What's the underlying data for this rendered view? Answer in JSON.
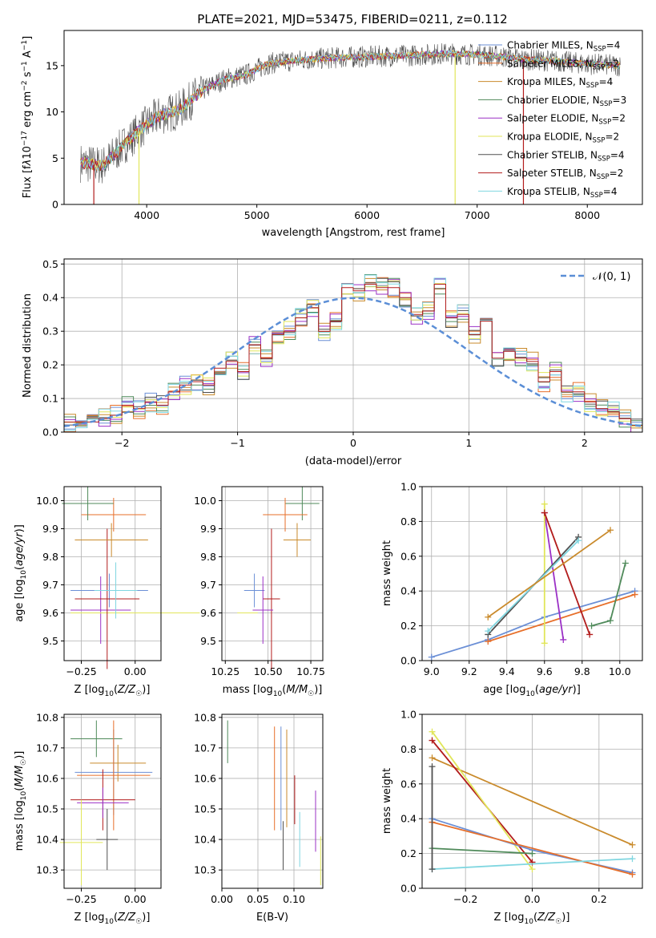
{
  "figure_title": "PLATE=2021, MJD=53475, FIBERID=0211, z=0.112",
  "models": [
    {
      "name": "Chabrier MILES",
      "nssp": "4",
      "color": "#6b8fd6"
    },
    {
      "name": "Salpeter MILES",
      "nssp": "2",
      "color": "#e76f2a"
    },
    {
      "name": "Kroupa MILES",
      "nssp": "4",
      "color": "#c98a2b"
    },
    {
      "name": "Chabrier ELODIE",
      "nssp": "3",
      "color": "#4f8a5a"
    },
    {
      "name": "Salpeter ELODIE",
      "nssp": "2",
      "color": "#9b30c6"
    },
    {
      "name": "Kroupa ELODIE",
      "nssp": "2",
      "color": "#e1e65a"
    },
    {
      "name": "Chabrier STELIB",
      "nssp": "4",
      "color": "#505050"
    },
    {
      "name": "Salpeter STELIB",
      "nssp": "2",
      "color": "#b21c1c"
    },
    {
      "name": "Kroupa STELIB",
      "nssp": "4",
      "color": "#7fd6e0"
    }
  ],
  "panels": {
    "spectrum": {
      "xlabel": "wavelength [Angstrom, rest frame]",
      "ylabel": "Flux [f_λ10⁻¹⁷ erg cm⁻² s⁻¹ A⁻¹]",
      "xlim": [
        3250,
        8500
      ],
      "ylim": [
        0,
        18.8
      ],
      "xticks": [
        "4000",
        "5000",
        "6000",
        "7000",
        "8000"
      ],
      "yticks": [
        "0",
        "5",
        "10",
        "15"
      ]
    },
    "residuals": {
      "xlabel": "(data-model)/error",
      "ylabel": "Normed distribution",
      "xlim": [
        -2.5,
        2.5
      ],
      "ylim": [
        0,
        0.515
      ],
      "xticks": [
        "−2",
        "−1",
        "0",
        "1",
        "2"
      ],
      "yticks": [
        "0.0",
        "0.1",
        "0.2",
        "0.3",
        "0.4",
        "0.5"
      ],
      "legend": "𝒩(0, 1)"
    },
    "age_vs_Z": {
      "xlabel": "Z [log₁₀(Z/Z☉)]",
      "ylabel": "age [log₁₀(age/yr)]",
      "xticks": [
        "−0.25",
        "0.00"
      ],
      "yticks": [
        "9.5",
        "9.6",
        "9.7",
        "9.8",
        "9.9",
        "10.0"
      ]
    },
    "age_vs_mass": {
      "xlabel": "mass [log₁₀(M/M☉)]",
      "xticks": [
        "10.25",
        "10.50",
        "10.75"
      ],
      "yticks": [
        "9.5",
        "9.6",
        "9.7",
        "9.8",
        "9.9",
        "10.0"
      ]
    },
    "weight_vs_age": {
      "xlabel": "age [log₁₀(age/yr)]",
      "ylabel": "mass weight",
      "xticks": [
        "9.0",
        "9.2",
        "9.4",
        "9.6",
        "9.8",
        "10.0"
      ],
      "yticks": [
        "0.0",
        "0.2",
        "0.4",
        "0.6",
        "0.8",
        "1.0"
      ]
    },
    "mass_vs_Z": {
      "xlabel": "Z [log₁₀(Z/Z☉)]",
      "ylabel": "mass [log₁₀(M/M☉)]",
      "xticks": [
        "−0.25",
        "0.00"
      ],
      "yticks": [
        "10.3",
        "10.4",
        "10.5",
        "10.6",
        "10.7",
        "10.8"
      ]
    },
    "mass_vs_ebv": {
      "xlabel": "E(B-V)",
      "xticks": [
        "0.00",
        "0.05",
        "0.10"
      ],
      "yticks": [
        "10.3",
        "10.4",
        "10.5",
        "10.6",
        "10.7",
        "10.8"
      ]
    },
    "weight_vs_Z": {
      "xlabel": "Z [log₁₀(Z/Z☉)]",
      "ylabel": "mass weight",
      "xticks": [
        "−0.2",
        "0.0",
        "0.2"
      ],
      "yticks": [
        "0.0",
        "0.2",
        "0.4",
        "0.6",
        "0.8",
        "1.0"
      ]
    }
  },
  "chart_data": [
    {
      "type": "line",
      "title": "PLATE=2021, MJD=53475, FIBERID=0211, z=0.112",
      "xlabel": "wavelength [Angstrom, rest frame]",
      "ylabel": "Flux [f_λ10⁻¹⁷ erg cm⁻² s⁻¹ A⁻¹]",
      "xlim": [
        3250,
        8500
      ],
      "ylim": [
        0,
        18.8
      ],
      "continuum_x": [
        3400,
        3600,
        3800,
        3950,
        4100,
        4300,
        4500,
        4700,
        4900,
        5100,
        5300,
        5500,
        5800,
        6100,
        6400,
        6700,
        7000,
        7200,
        7400,
        7700,
        8000,
        8300
      ],
      "continuum_y": [
        4.5,
        4.2,
        6.5,
        8.2,
        9.5,
        10.2,
        12.3,
        13.5,
        14.0,
        15.2,
        15.5,
        15.7,
        15.9,
        16.0,
        16.1,
        16.3,
        16.2,
        16.0,
        15.7,
        15.5,
        15.2,
        15.0
      ],
      "legend": [
        "Chabrier MILES, N_SSP=4",
        "Salpeter MILES, N_SSP=2",
        "Kroupa MILES, N_SSP=4",
        "Chabrier ELODIE, N_SSP=3",
        "Salpeter ELODIE, N_SSP=2",
        "Kroupa ELODIE, N_SSP=2",
        "Chabrier STELIB, N_SSP=4",
        "Salpeter STELIB, N_SSP=2",
        "Kroupa STELIB, N_SSP=4"
      ]
    },
    {
      "type": "line",
      "xlabel": "(data-model)/error",
      "ylabel": "Normed distribution",
      "xlim": [
        -2.5,
        2.5
      ],
      "ylim": [
        0,
        0.515
      ],
      "bin_edges_start": -2.6,
      "bin_width": 0.1,
      "histogram": {
        "model": "Salpeter STELIB",
        "values": [
          0.02,
          0.03,
          0.03,
          0.03,
          0.04,
          0.05,
          0.08,
          0.07,
          0.09,
          0.08,
          0.12,
          0.14,
          0.15,
          0.14,
          0.19,
          0.21,
          0.18,
          0.26,
          0.22,
          0.29,
          0.3,
          0.34,
          0.37,
          0.3,
          0.33,
          0.43,
          0.42,
          0.44,
          0.43,
          0.43,
          0.4,
          0.35,
          0.36,
          0.44,
          0.34,
          0.35,
          0.29,
          0.33,
          0.22,
          0.24,
          0.22,
          0.21,
          0.15,
          0.18,
          0.12,
          0.12,
          0.09,
          0.07,
          0.06,
          0.04,
          0.02,
          0.02
        ]
      },
      "normal_curve": {
        "name": "𝒩(0, 1)",
        "mean": 0,
        "sigma": 1
      }
    },
    {
      "type": "scatter",
      "xlabel": "Z [log₁₀(Z/Z☉)]",
      "ylabel": "age [log₁₀(age/yr)]",
      "xlim": [
        -0.33,
        0.12
      ],
      "ylim": [
        9.43,
        10.05
      ],
      "points": [
        {
          "model": "Chabrier MILES",
          "x": -0.12,
          "xerr": 0.18,
          "y": 9.68,
          "yerr": 0.06
        },
        {
          "model": "Salpeter MILES",
          "x": -0.1,
          "xerr": 0.15,
          "y": 9.95,
          "yerr": 0.06
        },
        {
          "model": "Chabrier ELODIE",
          "x": -0.22,
          "xerr": 0.12,
          "y": 9.99,
          "yerr": 0.06
        },
        {
          "model": "Salpeter ELODIE",
          "x": -0.16,
          "xerr": 0.14,
          "y": 9.61,
          "yerr": 0.12
        },
        {
          "model": "Kroupa ELODIE",
          "x": 0.0,
          "xerr": 0.3,
          "y": 9.6,
          "yerr": 0.0
        },
        {
          "model": "Salpeter STELIB",
          "x": -0.13,
          "xerr": 0.15,
          "y": 9.65,
          "yerr": 0.25
        },
        {
          "model": "Kroupa STELIB",
          "x": -0.09,
          "xerr": 0.1,
          "y": 9.68,
          "yerr": 0.1
        },
        {
          "model": "Kroupa MILES",
          "x": -0.11,
          "xerr": 0.17,
          "y": 9.86,
          "yerr": 0.06
        }
      ]
    },
    {
      "type": "scatter",
      "xlabel": "mass [log₁₀(M/M☉)]",
      "xlim": [
        10.23,
        10.82
      ],
      "ylim": [
        9.43,
        10.05
      ],
      "points": [
        {
          "model": "Chabrier ELODIE",
          "x": 10.7,
          "xerr": 0.1,
          "y": 9.99,
          "yerr": 0.06
        },
        {
          "model": "Salpeter MILES",
          "x": 10.6,
          "xerr": 0.13,
          "y": 9.95,
          "yerr": 0.06
        },
        {
          "model": "Kroupa MILES",
          "x": 10.67,
          "xerr": 0.08,
          "y": 9.86,
          "yerr": 0.06
        },
        {
          "model": "Chabrier MILES",
          "x": 10.42,
          "xerr": 0.06,
          "y": 9.68,
          "yerr": 0.06
        },
        {
          "model": "Salpeter STELIB",
          "x": 10.52,
          "xerr": 0.05,
          "y": 9.65,
          "yerr": 0.25
        },
        {
          "model": "Salpeter ELODIE",
          "x": 10.47,
          "xerr": 0.06,
          "y": 9.61,
          "yerr": 0.12
        },
        {
          "model": "Kroupa ELODIE",
          "x": 10.38,
          "xerr": 0.06,
          "y": 9.6,
          "yerr": 0.0
        }
      ]
    },
    {
      "type": "line",
      "xlabel": "age [log₁₀(age/yr)]",
      "ylabel": "mass weight",
      "xlim": [
        8.95,
        10.12
      ],
      "ylim": [
        0,
        1.0
      ],
      "series": [
        {
          "name": "Chabrier MILES",
          "x": [
            9.0,
            9.3,
            9.6,
            10.08
          ],
          "y": [
            0.02,
            0.12,
            0.25,
            0.4
          ]
        },
        {
          "name": "Salpeter MILES",
          "x": [
            9.3,
            10.08
          ],
          "y": [
            0.11,
            0.38
          ]
        },
        {
          "name": "Chabrier ELODIE",
          "x": [
            9.85,
            9.95,
            10.03
          ],
          "y": [
            0.2,
            0.23,
            0.56
          ]
        },
        {
          "name": "Salpeter ELODIE",
          "x": [
            9.6,
            9.7
          ],
          "y": [
            0.85,
            0.12
          ]
        },
        {
          "name": "Kroupa ELODIE",
          "x": [
            9.6,
            9.6
          ],
          "y": [
            0.9,
            0.1
          ]
        },
        {
          "name": "Chabrier STELIB",
          "x": [
            9.3,
            9.78
          ],
          "y": [
            0.15,
            0.71
          ]
        },
        {
          "name": "Salpeter STELIB",
          "x": [
            9.6,
            9.84
          ],
          "y": [
            0.85,
            0.15
          ]
        },
        {
          "name": "Kroupa STELIB",
          "x": [
            9.3,
            9.78
          ],
          "y": [
            0.17,
            0.69
          ]
        },
        {
          "name": "Kroupa MILES",
          "x": [
            9.3,
            9.95
          ],
          "y": [
            0.25,
            0.75
          ]
        }
      ]
    },
    {
      "type": "scatter",
      "xlabel": "Z [log₁₀(Z/Z☉)]",
      "ylabel": "mass [log₁₀(M/M☉)]",
      "xlim": [
        -0.33,
        0.12
      ],
      "ylim": [
        10.24,
        10.81
      ],
      "points": [
        {
          "model": "Chabrier ELODIE",
          "x": -0.18,
          "xerr": 0.12,
          "y": 10.73,
          "yerr": 0.06
        },
        {
          "model": "Kroupa MILES",
          "x": -0.08,
          "xerr": 0.13,
          "y": 10.65,
          "yerr": 0.06
        },
        {
          "model": "Chabrier MILES",
          "x": -0.1,
          "xerr": 0.18,
          "y": 10.62,
          "yerr": 0.14
        },
        {
          "model": "Salpeter MILES",
          "x": -0.1,
          "xerr": 0.17,
          "y": 10.61,
          "yerr": 0.18
        },
        {
          "model": "Salpeter STELIB",
          "x": -0.15,
          "xerr": 0.15,
          "y": 10.53,
          "yerr": 0.1
        },
        {
          "model": "Salpeter ELODIE",
          "x": -0.15,
          "xerr": 0.12,
          "y": 10.52,
          "yerr": 0.05
        },
        {
          "model": "Chabrier STELIB",
          "x": -0.13,
          "xerr": 0.05,
          "y": 10.4,
          "yerr": 0.1
        },
        {
          "model": "Kroupa ELODIE",
          "x": -0.25,
          "xerr": 0.1,
          "y": 10.39,
          "yerr": 0.14
        }
      ]
    },
    {
      "type": "scatter",
      "xlabel": "E(B-V)",
      "xlim": [
        0.0,
        0.14
      ],
      "ylim": [
        10.24,
        10.81
      ],
      "points": [
        {
          "model": "Chabrier ELODIE",
          "x": 0.008,
          "y": 10.72,
          "yerr": 0.07
        },
        {
          "model": "Salpeter MILES",
          "x": 0.073,
          "y": 10.6,
          "yerr": 0.17
        },
        {
          "model": "Chabrier MILES",
          "x": 0.082,
          "y": 10.6,
          "yerr": 0.17
        },
        {
          "model": "Chabrier STELIB",
          "x": 0.085,
          "y": 10.38,
          "yerr": 0.08
        },
        {
          "model": "Kroupa MILES",
          "x": 0.09,
          "y": 10.6,
          "yerr": 0.16
        },
        {
          "model": "Salpeter STELIB",
          "x": 0.101,
          "y": 10.53,
          "yerr": 0.08
        },
        {
          "model": "Kroupa STELIB",
          "x": 0.108,
          "y": 10.4,
          "yerr": 0.09
        },
        {
          "model": "Salpeter ELODIE",
          "x": 0.13,
          "y": 10.46,
          "yerr": 0.1
        },
        {
          "model": "Kroupa ELODIE",
          "x": 0.137,
          "y": 10.33,
          "yerr": 0.08
        }
      ]
    },
    {
      "type": "line",
      "xlabel": "Z [log₁₀(Z/Z☉)]",
      "ylabel": "mass weight",
      "xlim": [
        -0.33,
        0.33
      ],
      "ylim": [
        0,
        1.0
      ],
      "series": [
        {
          "name": "Kroupa MILES",
          "x": [
            -0.3,
            0.3
          ],
          "y": [
            0.75,
            0.25
          ]
        },
        {
          "name": "Salpeter STELIB",
          "x": [
            -0.3,
            0.0
          ],
          "y": [
            0.85,
            0.15
          ]
        },
        {
          "name": "Kroupa ELODIE",
          "x": [
            -0.3,
            0.0
          ],
          "y": [
            0.9,
            0.11
          ]
        },
        {
          "name": "Chabrier MILES",
          "x": [
            -0.3,
            0.0,
            0.3
          ],
          "y": [
            0.4,
            0.22,
            0.09
          ]
        },
        {
          "name": "Salpeter MILES",
          "x": [
            -0.3,
            0.3
          ],
          "y": [
            0.38,
            0.08
          ]
        },
        {
          "name": "Chabrier ELODIE",
          "x": [
            -0.3,
            0.0
          ],
          "y": [
            0.23,
            0.2
          ]
        },
        {
          "name": "Kroupa STELIB",
          "x": [
            -0.3,
            0.3
          ],
          "y": [
            0.11,
            0.17
          ]
        },
        {
          "name": "Chabrier STELIB",
          "x": [
            -0.3,
            -0.3
          ],
          "y": [
            0.7,
            0.11
          ]
        }
      ]
    }
  ]
}
